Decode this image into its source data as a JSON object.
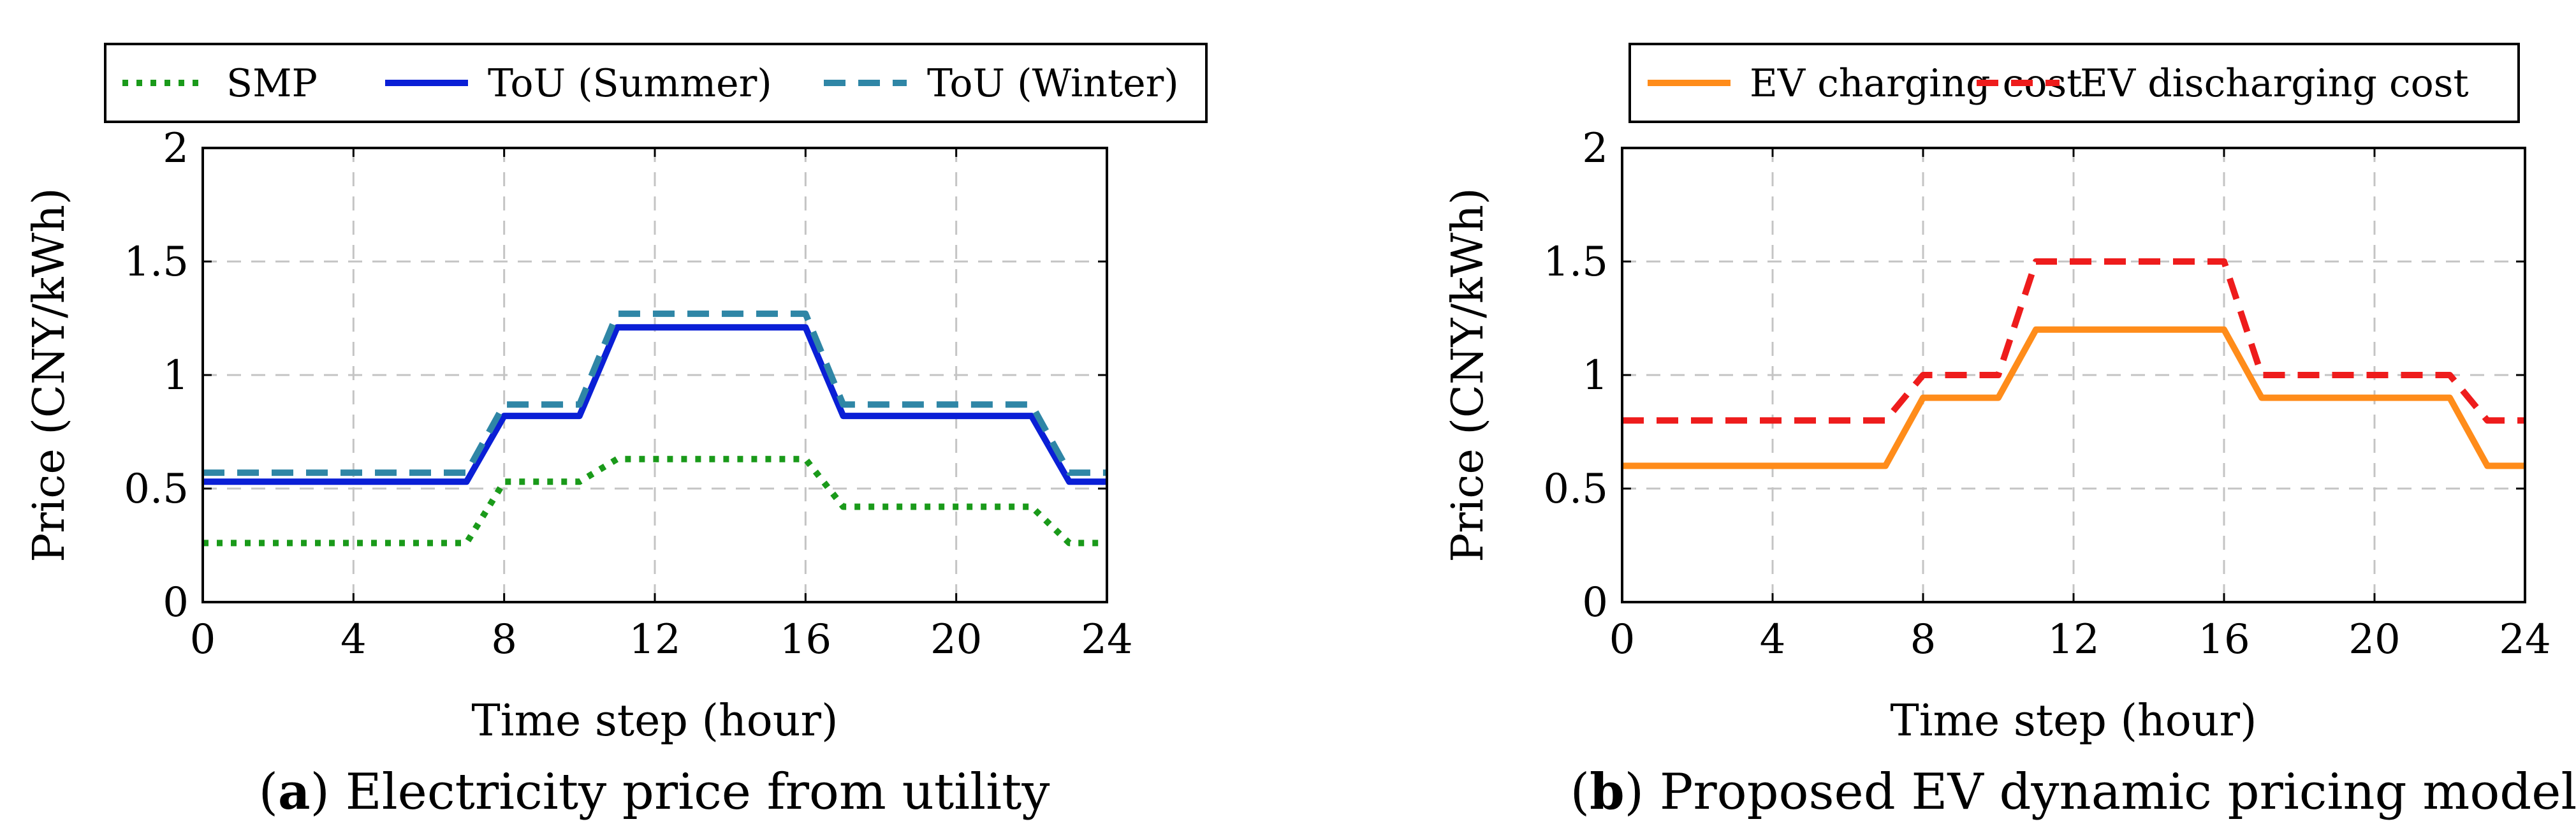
{
  "chart_data": [
    {
      "type": "line",
      "caption_letter": "a",
      "caption_text": "Electricity price from utility",
      "xlabel": "Time step (hour)",
      "ylabel": "Price (CNY/kWh)",
      "xlim": [
        0,
        24
      ],
      "ylim": [
        0,
        2
      ],
      "xticks": [
        0,
        4,
        8,
        12,
        16,
        20,
        24
      ],
      "yticks": [
        0,
        0.5,
        1,
        1.5,
        2
      ],
      "ytick_labels": [
        "0",
        "0.5",
        "1",
        "1.5",
        "2"
      ],
      "grid": true,
      "legend_position": "top",
      "series": [
        {
          "name": "SMP",
          "color": "#1a9a1a",
          "style": "dotted",
          "x": [
            0,
            7,
            8,
            10,
            11,
            16,
            17,
            22,
            23,
            24
          ],
          "y": [
            0.26,
            0.26,
            0.53,
            0.53,
            0.63,
            0.63,
            0.42,
            0.42,
            0.26,
            0.26
          ]
        },
        {
          "name": "ToU (Summer)",
          "color": "#0a1fd6",
          "style": "solid",
          "x": [
            0,
            7,
            8,
            10,
            11,
            16,
            17,
            22,
            23,
            24
          ],
          "y": [
            0.53,
            0.53,
            0.82,
            0.82,
            1.21,
            1.21,
            0.82,
            0.82,
            0.53,
            0.53
          ]
        },
        {
          "name": "ToU (Winter)",
          "color": "#2f86a6",
          "style": "dashed",
          "x": [
            0,
            7,
            8,
            10,
            11,
            16,
            17,
            22,
            23,
            24
          ],
          "y": [
            0.57,
            0.57,
            0.87,
            0.87,
            1.27,
            1.27,
            0.87,
            0.87,
            0.57,
            0.57
          ]
        }
      ]
    },
    {
      "type": "line",
      "caption_letter": "b",
      "caption_text": "Proposed EV dynamic pricing model",
      "xlabel": "Time step (hour)",
      "ylabel": "Price (CNY/kWh)",
      "xlim": [
        0,
        24
      ],
      "ylim": [
        0,
        2
      ],
      "xticks": [
        0,
        4,
        8,
        12,
        16,
        20,
        24
      ],
      "yticks": [
        0,
        0.5,
        1,
        1.5,
        2
      ],
      "ytick_labels": [
        "0",
        "0.5",
        "1",
        "1.5",
        "2"
      ],
      "grid": true,
      "legend_position": "top",
      "series": [
        {
          "name": "EV charging cost",
          "color": "#ff8c1a",
          "style": "solid",
          "x": [
            0,
            7,
            8,
            10,
            11,
            16,
            17,
            22,
            23,
            24
          ],
          "y": [
            0.6,
            0.6,
            0.9,
            0.9,
            1.2,
            1.2,
            0.9,
            0.9,
            0.6,
            0.6
          ]
        },
        {
          "name": "EV discharging cost",
          "color": "#ee1c1c",
          "style": "dashed",
          "x": [
            0,
            7,
            8,
            10,
            11,
            16,
            17,
            22,
            23,
            24
          ],
          "y": [
            0.8,
            0.8,
            1.0,
            1.0,
            1.5,
            1.5,
            1.0,
            1.0,
            0.8,
            0.8
          ]
        }
      ]
    }
  ]
}
